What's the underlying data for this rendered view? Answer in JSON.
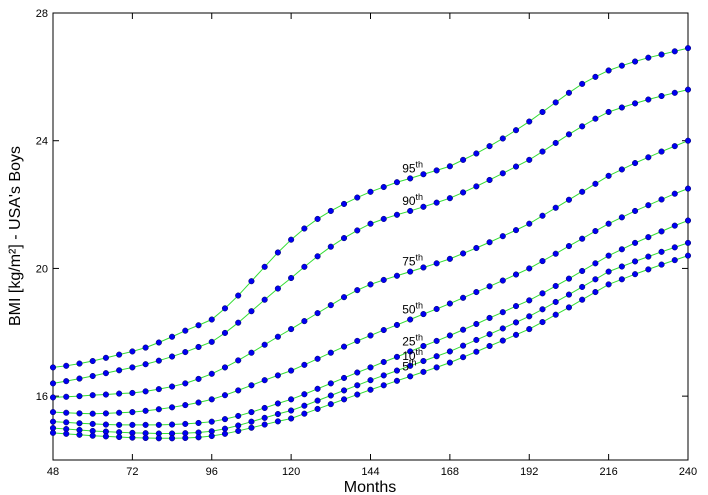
{
  "chart_data": {
    "type": "percentile-line",
    "xlabel": "Months",
    "ylabel": "BMI [kg/m²] - USA's Boys",
    "x": [
      48,
      52,
      56,
      60,
      64,
      68,
      72,
      76,
      80,
      84,
      88,
      92,
      96,
      100,
      104,
      108,
      112,
      116,
      120,
      124,
      128,
      132,
      136,
      140,
      144,
      148,
      152,
      156,
      160,
      164,
      168,
      172,
      176,
      180,
      184,
      188,
      192,
      196,
      200,
      204,
      208,
      212,
      216,
      220,
      224,
      228,
      232,
      236,
      240
    ],
    "xlim": [
      48,
      240
    ],
    "xticks": [
      48,
      72,
      96,
      120,
      144,
      168,
      192,
      216,
      240
    ],
    "ylim": [
      14,
      28
    ],
    "yticks": [
      16,
      20,
      24,
      28
    ],
    "line_color": "#33dd33",
    "marker_color": "#0000ee",
    "series": [
      {
        "name": "95th",
        "values": [
          16.9,
          16.95,
          17.02,
          17.1,
          17.2,
          17.3,
          17.4,
          17.52,
          17.68,
          17.86,
          18.05,
          18.22,
          18.4,
          18.75,
          19.15,
          19.6,
          20.05,
          20.5,
          20.9,
          21.25,
          21.55,
          21.8,
          22.02,
          22.22,
          22.4,
          22.55,
          22.7,
          22.82,
          22.95,
          23.07,
          23.2,
          23.4,
          23.6,
          23.83,
          24.07,
          24.33,
          24.6,
          24.9,
          25.2,
          25.5,
          25.78,
          26.0,
          26.2,
          26.35,
          26.48,
          26.6,
          26.7,
          26.8,
          26.9
        ]
      },
      {
        "name": "90th",
        "values": [
          16.4,
          16.47,
          16.55,
          16.63,
          16.72,
          16.81,
          16.9,
          17.0,
          17.11,
          17.24,
          17.38,
          17.54,
          17.7,
          17.98,
          18.3,
          18.66,
          19.02,
          19.37,
          19.7,
          20.05,
          20.38,
          20.68,
          20.95,
          21.19,
          21.4,
          21.55,
          21.68,
          21.8,
          21.93,
          22.06,
          22.2,
          22.38,
          22.57,
          22.77,
          22.98,
          23.19,
          23.4,
          23.66,
          23.93,
          24.2,
          24.45,
          24.69,
          24.9,
          25.04,
          25.17,
          25.29,
          25.4,
          25.5,
          25.6
        ]
      },
      {
        "name": "75th",
        "values": [
          15.96,
          15.98,
          16.0,
          16.03,
          16.05,
          16.08,
          16.1,
          16.15,
          16.22,
          16.3,
          16.4,
          16.54,
          16.7,
          16.9,
          17.12,
          17.36,
          17.61,
          17.86,
          18.1,
          18.35,
          18.6,
          18.85,
          19.1,
          19.32,
          19.5,
          19.64,
          19.77,
          19.9,
          20.03,
          20.16,
          20.3,
          20.47,
          20.64,
          20.82,
          21.01,
          21.2,
          21.4,
          21.65,
          21.9,
          22.15,
          22.4,
          22.65,
          22.9,
          23.1,
          23.3,
          23.48,
          23.66,
          23.83,
          24.0
        ]
      },
      {
        "name": "50th",
        "values": [
          15.5,
          15.48,
          15.46,
          15.45,
          15.46,
          15.48,
          15.5,
          15.54,
          15.59,
          15.65,
          15.72,
          15.8,
          15.9,
          16.03,
          16.18,
          16.34,
          16.5,
          16.65,
          16.8,
          16.98,
          17.17,
          17.36,
          17.55,
          17.73,
          17.9,
          18.07,
          18.23,
          18.4,
          18.57,
          18.73,
          18.9,
          19.08,
          19.26,
          19.44,
          19.62,
          19.81,
          20.0,
          20.23,
          20.46,
          20.7,
          20.93,
          21.17,
          21.4,
          21.6,
          21.8,
          21.98,
          22.16,
          22.34,
          22.5
        ]
      },
      {
        "name": "25th",
        "values": [
          15.2,
          15.18,
          15.15,
          15.13,
          15.11,
          15.1,
          15.1,
          15.1,
          15.1,
          15.11,
          15.13,
          15.16,
          15.2,
          15.28,
          15.38,
          15.5,
          15.63,
          15.77,
          15.9,
          16.06,
          16.23,
          16.4,
          16.57,
          16.74,
          16.9,
          17.07,
          17.23,
          17.4,
          17.57,
          17.73,
          17.9,
          18.08,
          18.26,
          18.45,
          18.63,
          18.82,
          19.0,
          19.22,
          19.45,
          19.68,
          19.92,
          20.16,
          20.4,
          20.6,
          20.8,
          20.98,
          21.16,
          21.34,
          21.5
        ]
      },
      {
        "name": "10th",
        "values": [
          15.0,
          14.97,
          14.94,
          14.91,
          14.89,
          14.87,
          14.85,
          14.84,
          14.83,
          14.83,
          14.84,
          14.86,
          14.9,
          14.98,
          15.08,
          15.2,
          15.32,
          15.44,
          15.55,
          15.7,
          15.86,
          16.02,
          16.18,
          16.34,
          16.5,
          16.65,
          16.8,
          16.95,
          17.1,
          17.25,
          17.4,
          17.58,
          17.76,
          17.94,
          18.12,
          18.31,
          18.5,
          18.72,
          18.95,
          19.18,
          19.42,
          19.66,
          19.9,
          20.06,
          20.22,
          20.37,
          20.52,
          20.66,
          20.8
        ]
      },
      {
        "name": "5th",
        "values": [
          14.85,
          14.82,
          14.79,
          14.76,
          14.74,
          14.72,
          14.7,
          14.69,
          14.68,
          14.68,
          14.69,
          14.71,
          14.75,
          14.82,
          14.91,
          15.01,
          15.11,
          15.21,
          15.3,
          15.45,
          15.6,
          15.75,
          15.9,
          16.05,
          16.2,
          16.34,
          16.48,
          16.62,
          16.76,
          16.9,
          17.05,
          17.22,
          17.39,
          17.57,
          17.74,
          17.92,
          18.1,
          18.32,
          18.55,
          18.78,
          19.02,
          19.26,
          19.5,
          19.66,
          19.82,
          19.97,
          20.12,
          20.26,
          20.4
        ]
      }
    ]
  }
}
